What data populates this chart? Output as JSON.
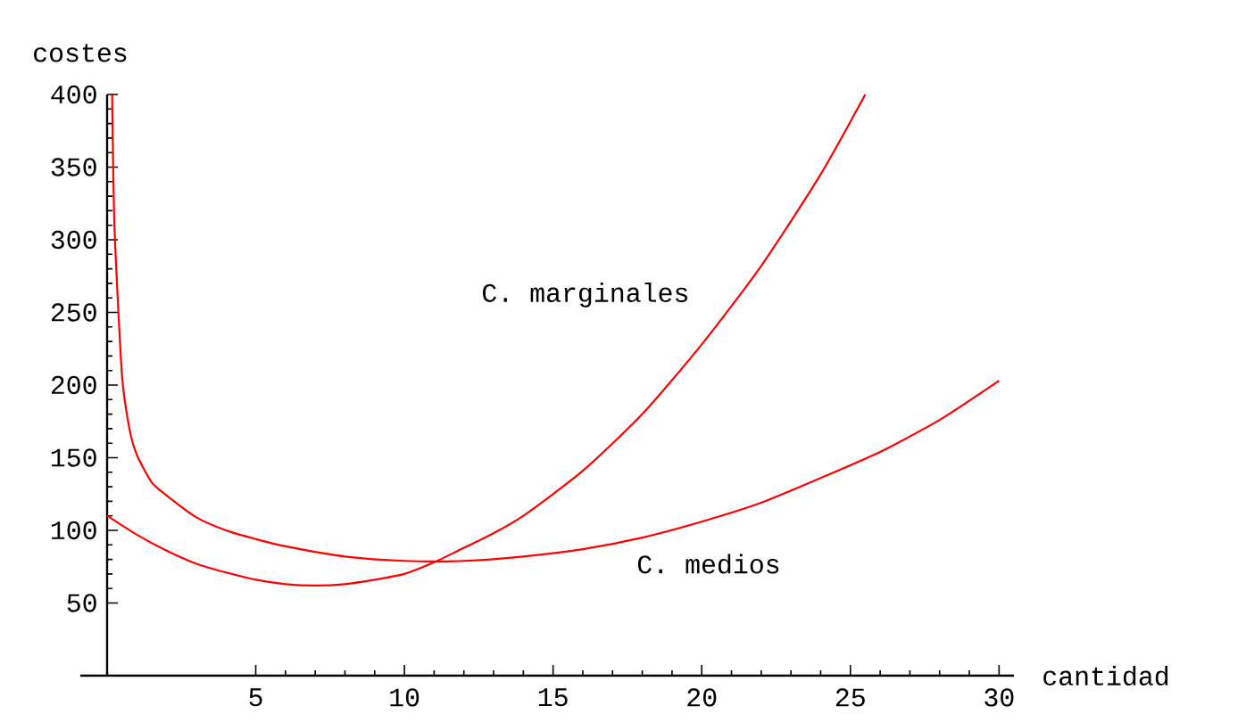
{
  "chart_data": {
    "type": "line",
    "xlabel": "cantidad",
    "ylabel": "costes",
    "xlim": [
      -0.9,
      30.5
    ],
    "ylim": [
      0,
      400
    ],
    "xticks": [
      5,
      10,
      15,
      20,
      25,
      30
    ],
    "yticks": [
      50,
      100,
      150,
      200,
      250,
      300,
      350,
      400
    ],
    "series": [
      {
        "name": "C. marginales",
        "color": "#ff0000",
        "x": [
          0,
          1,
          2,
          3,
          4,
          5,
          6,
          7,
          8,
          9,
          10,
          11,
          12,
          13,
          14,
          16,
          18,
          20,
          22,
          24,
          25.5
        ],
        "values": [
          110,
          97,
          86,
          77,
          71,
          66,
          63,
          62,
          63,
          66,
          70,
          78,
          88,
          98,
          110,
          141,
          180,
          228,
          282,
          345,
          400
        ]
      },
      {
        "name": "C. medios",
        "color": "#ff0000",
        "x": [
          0.17,
          0.25,
          0.5,
          0.75,
          1,
          1.5,
          2,
          3,
          4,
          5,
          6,
          8,
          10,
          12,
          14,
          16,
          18,
          20,
          22,
          24,
          26,
          28,
          30
        ],
        "values": [
          400,
          308,
          207,
          170,
          152,
          133,
          124,
          109,
          100,
          94,
          89,
          82,
          79,
          79,
          82,
          87,
          95,
          106,
          119,
          136,
          154,
          176,
          203
        ]
      }
    ]
  }
}
